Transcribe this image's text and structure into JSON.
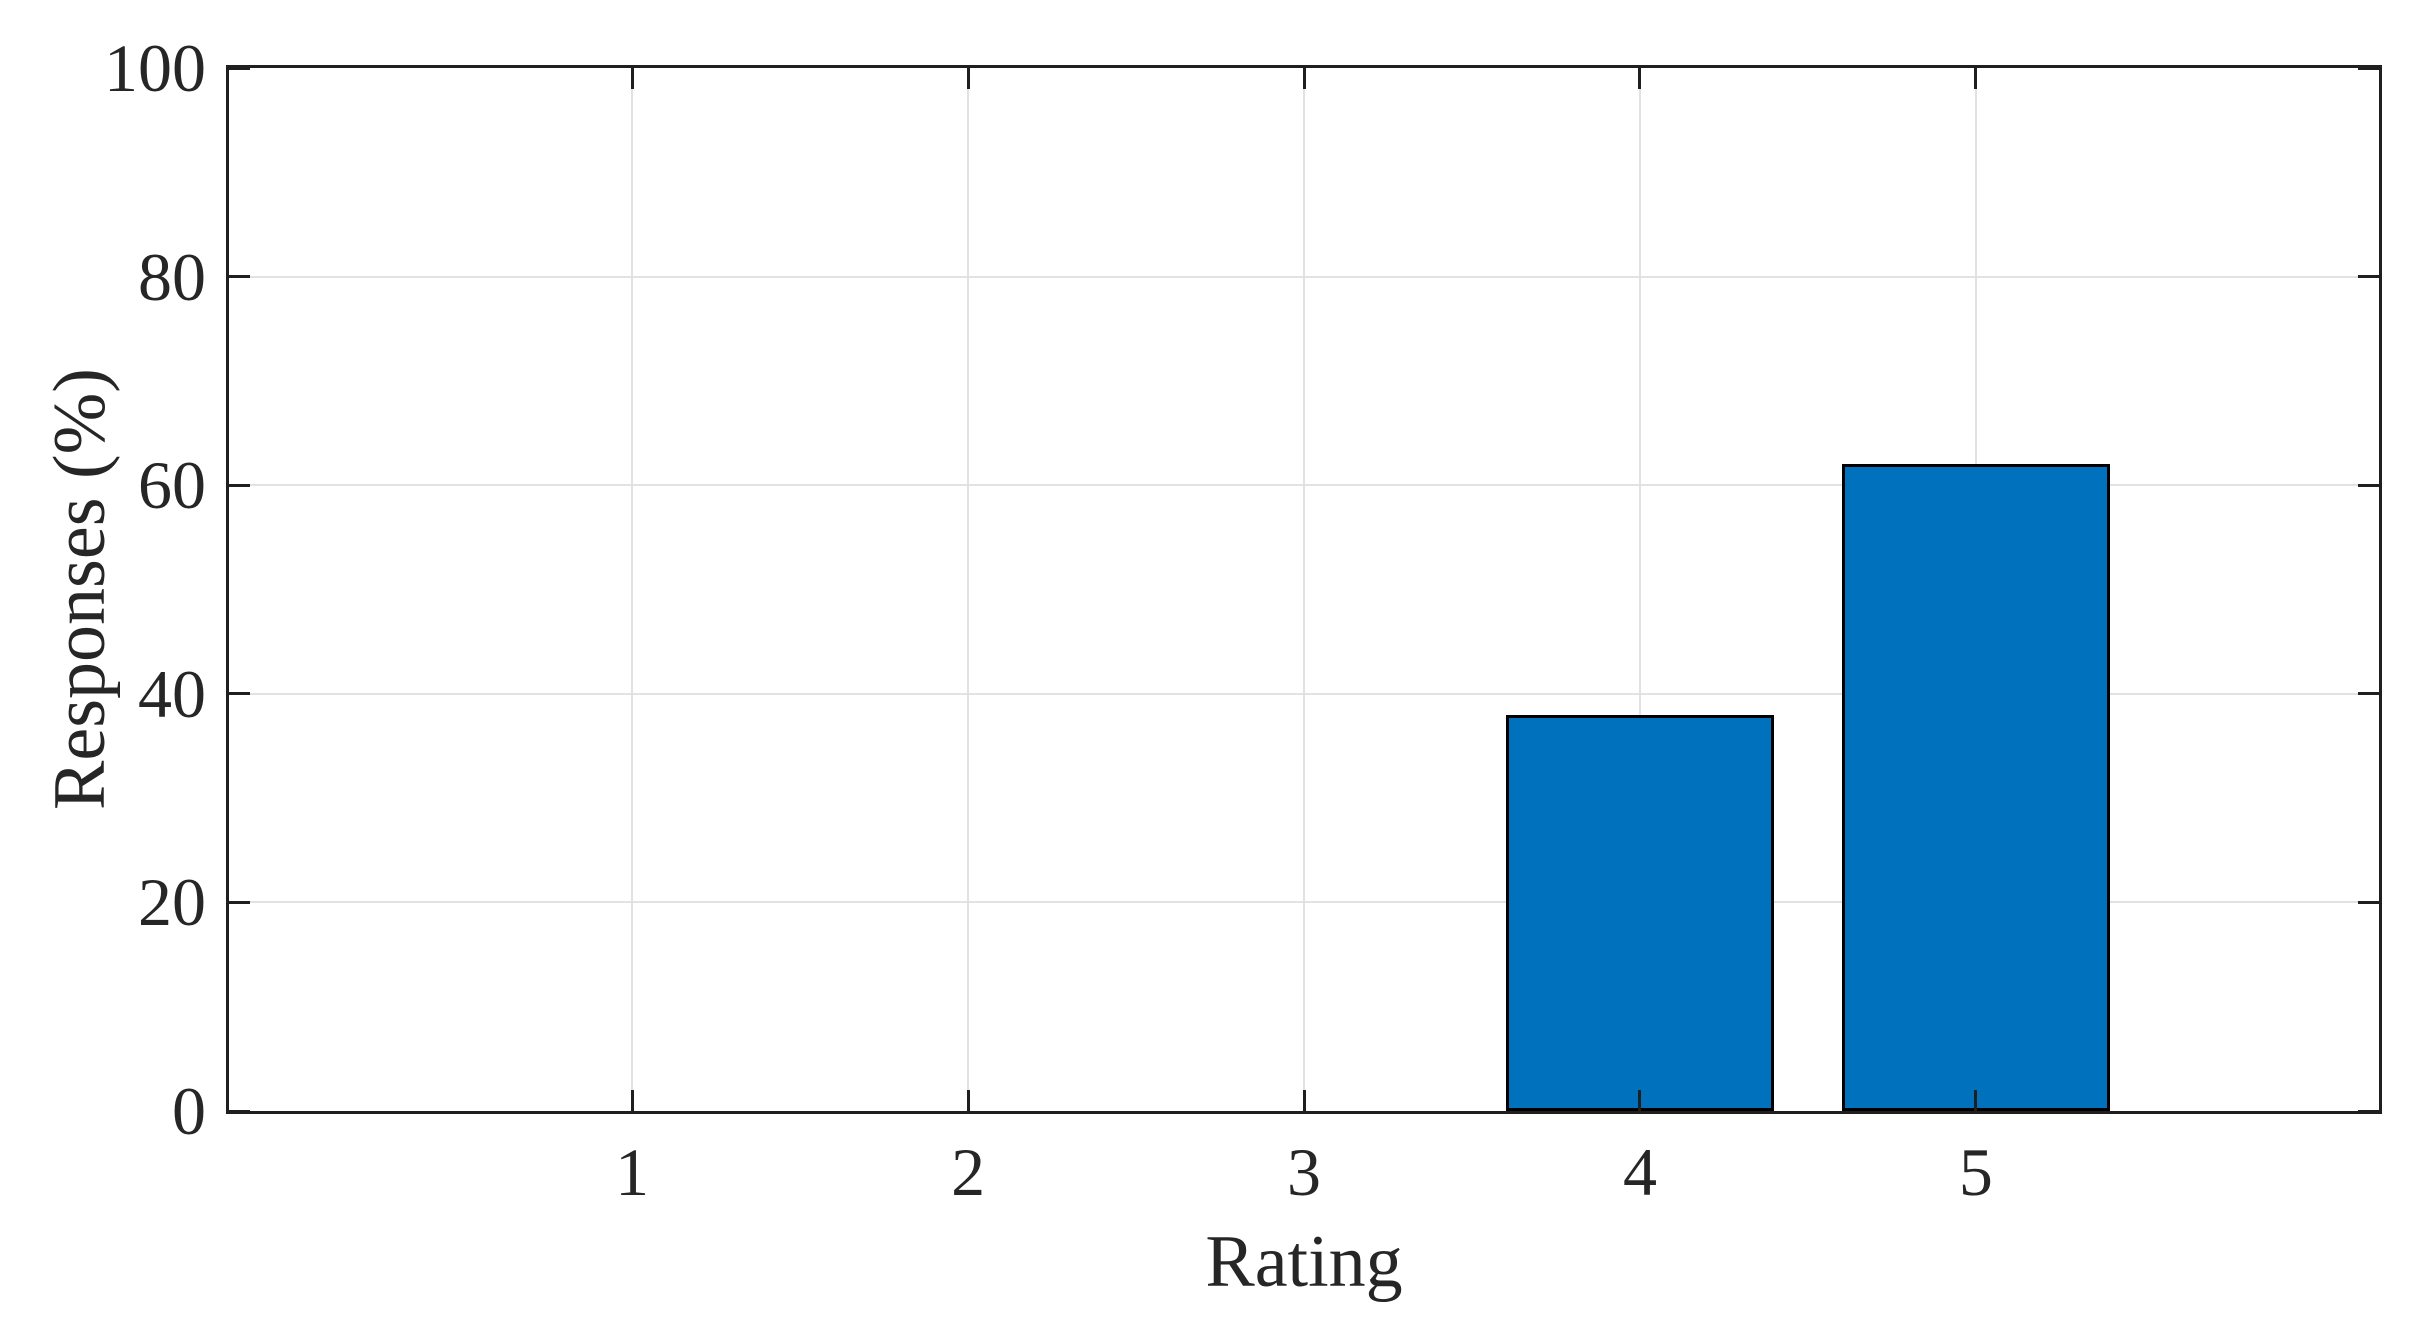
{
  "chart_data": {
    "type": "bar",
    "categories": [
      "1",
      "2",
      "3",
      "4",
      "5"
    ],
    "values": [
      0,
      0,
      0,
      38,
      62
    ],
    "title": "",
    "xlabel": "Rating",
    "ylabel": "Responses (%)",
    "ylim": [
      0,
      100
    ],
    "yticks": [
      0,
      20,
      40,
      60,
      80,
      100
    ],
    "ytick_labels": [
      "0",
      "20",
      "40",
      "60",
      "80",
      "100"
    ],
    "grid": true,
    "legend": null,
    "colors": {
      "bar_fill": "#0072BD",
      "bar_edge": "#000000",
      "axis": "#1f1f1f",
      "grid": "#e2e2e2",
      "text": "#262626",
      "background": "#ffffff"
    }
  }
}
